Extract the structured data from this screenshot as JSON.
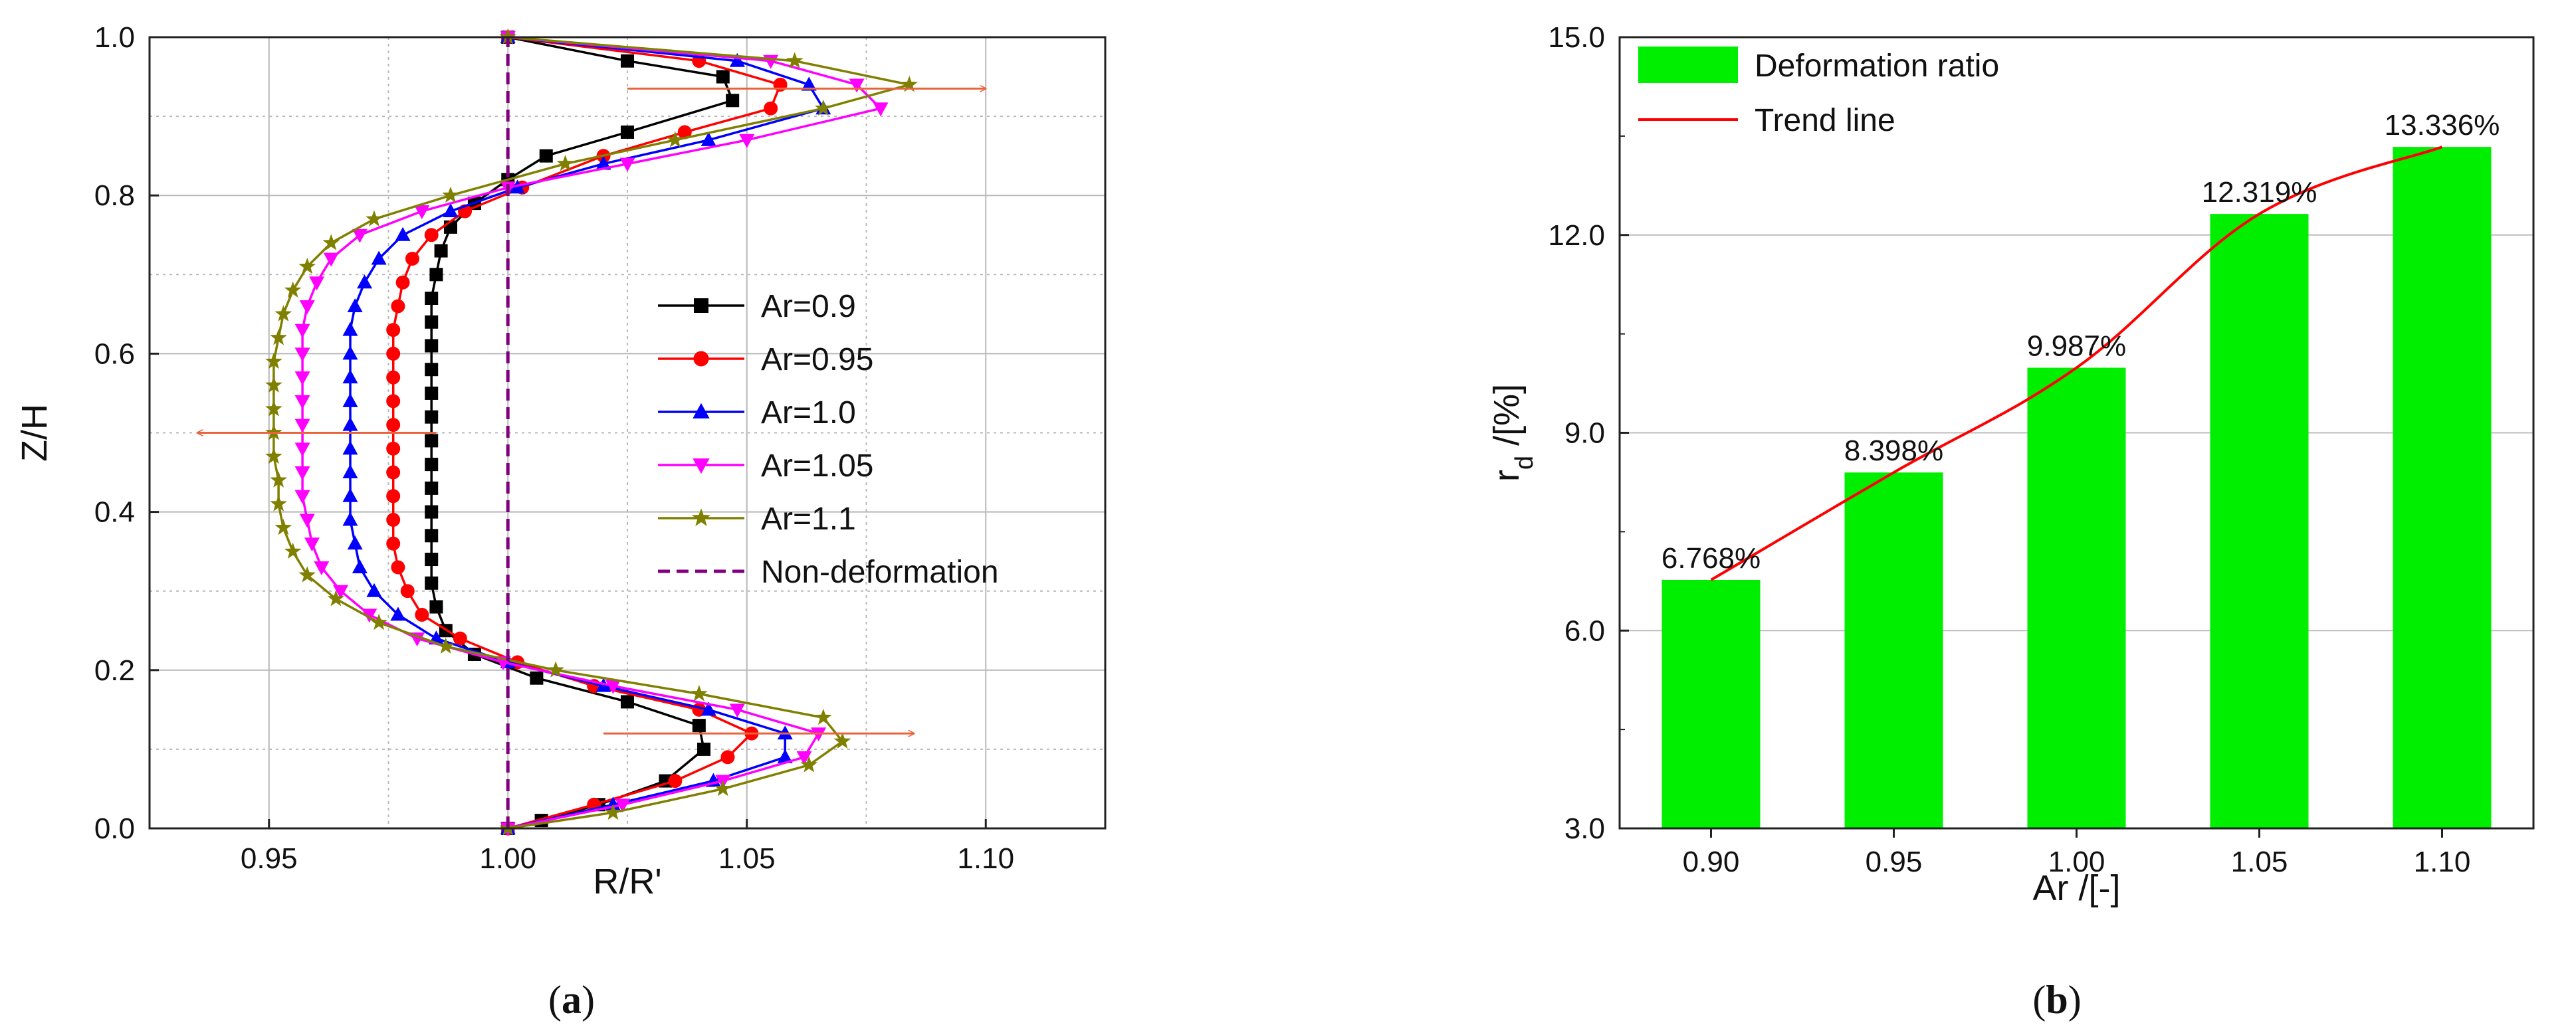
{
  "chart_data": [
    {
      "panel": "a",
      "type": "line",
      "caption": {
        "open": "(",
        "letter": "a",
        "close": ")"
      },
      "xlabel": "R/R'",
      "ylabel": "Z/H",
      "xlim": [
        0.925,
        1.125
      ],
      "ylim": [
        0.0,
        1.0
      ],
      "xticks": [
        0.95,
        1.0,
        1.05,
        1.1
      ],
      "xtick_labels": [
        "0.95",
        "1.00",
        "1.05",
        "1.10"
      ],
      "yticks": [
        0.0,
        0.2,
        0.4,
        0.6,
        0.8,
        1.0
      ],
      "ytick_labels": [
        "0.0",
        "0.2",
        "0.4",
        "0.6",
        "0.8",
        "1.0"
      ],
      "grid": true,
      "legend_position": "right-center",
      "series": [
        {
          "name": "Ar=0.9",
          "color": "#000000",
          "marker": "square",
          "z": [
            0.0,
            0.01,
            0.03,
            0.06,
            0.1,
            0.13,
            0.16,
            0.19,
            0.22,
            0.25,
            0.28,
            0.31,
            0.34,
            0.37,
            0.4,
            0.43,
            0.46,
            0.49,
            0.52,
            0.55,
            0.58,
            0.61,
            0.64,
            0.67,
            0.7,
            0.73,
            0.76,
            0.79,
            0.82,
            0.85,
            0.88,
            0.92,
            0.95,
            0.97,
            1.0
          ],
          "r": [
            1.0,
            1.007,
            1.019,
            1.033,
            1.041,
            1.04,
            1.025,
            1.006,
            0.993,
            0.987,
            0.985,
            0.984,
            0.984,
            0.984,
            0.984,
            0.984,
            0.984,
            0.984,
            0.984,
            0.984,
            0.984,
            0.984,
            0.984,
            0.984,
            0.985,
            0.986,
            0.988,
            0.993,
            1.0,
            1.008,
            1.025,
            1.047,
            1.045,
            1.025,
            1.0
          ]
        },
        {
          "name": "Ar=0.95",
          "color": "#ff0000",
          "marker": "circle",
          "z": [
            0.0,
            0.03,
            0.06,
            0.09,
            0.12,
            0.15,
            0.18,
            0.21,
            0.24,
            0.27,
            0.3,
            0.33,
            0.36,
            0.39,
            0.42,
            0.45,
            0.48,
            0.51,
            0.54,
            0.57,
            0.6,
            0.63,
            0.66,
            0.69,
            0.72,
            0.75,
            0.78,
            0.81,
            0.85,
            0.88,
            0.91,
            0.94,
            0.97,
            1.0
          ],
          "r": [
            1.0,
            1.018,
            1.035,
            1.046,
            1.051,
            1.04,
            1.018,
            1.002,
            0.99,
            0.982,
            0.979,
            0.977,
            0.976,
            0.976,
            0.976,
            0.976,
            0.976,
            0.976,
            0.976,
            0.976,
            0.976,
            0.976,
            0.977,
            0.978,
            0.98,
            0.984,
            0.991,
            1.003,
            1.02,
            1.037,
            1.055,
            1.057,
            1.04,
            1.0
          ]
        },
        {
          "name": "Ar=1.0",
          "color": "#0000ff",
          "marker": "triangle-up",
          "z": [
            0.0,
            0.03,
            0.06,
            0.09,
            0.12,
            0.15,
            0.18,
            0.21,
            0.24,
            0.27,
            0.3,
            0.33,
            0.36,
            0.39,
            0.42,
            0.45,
            0.48,
            0.51,
            0.54,
            0.57,
            0.6,
            0.63,
            0.66,
            0.69,
            0.72,
            0.75,
            0.78,
            0.81,
            0.84,
            0.87,
            0.91,
            0.94,
            0.97,
            1.0
          ],
          "r": [
            1.0,
            1.022,
            1.043,
            1.058,
            1.058,
            1.042,
            1.02,
            1.0,
            0.985,
            0.977,
            0.972,
            0.969,
            0.968,
            0.967,
            0.967,
            0.967,
            0.967,
            0.967,
            0.967,
            0.967,
            0.967,
            0.967,
            0.968,
            0.97,
            0.973,
            0.978,
            0.988,
            1.002,
            1.02,
            1.042,
            1.066,
            1.063,
            1.048,
            1.0
          ]
        },
        {
          "name": "Ar=1.05",
          "color": "#ff00ff",
          "marker": "triangle-down",
          "z": [
            0.0,
            0.03,
            0.06,
            0.09,
            0.12,
            0.15,
            0.18,
            0.21,
            0.24,
            0.27,
            0.3,
            0.33,
            0.36,
            0.39,
            0.42,
            0.45,
            0.48,
            0.51,
            0.54,
            0.57,
            0.6,
            0.63,
            0.66,
            0.69,
            0.72,
            0.75,
            0.78,
            0.81,
            0.84,
            0.87,
            0.91,
            0.94,
            0.97,
            1.0
          ],
          "r": [
            1.0,
            1.024,
            1.045,
            1.062,
            1.065,
            1.048,
            1.022,
            0.999,
            0.981,
            0.971,
            0.965,
            0.961,
            0.959,
            0.958,
            0.957,
            0.957,
            0.957,
            0.957,
            0.957,
            0.957,
            0.957,
            0.957,
            0.958,
            0.96,
            0.963,
            0.969,
            0.982,
            1.0,
            1.025,
            1.05,
            1.078,
            1.073,
            1.055,
            1.0
          ]
        },
        {
          "name": "Ar=1.1",
          "color": "#808000",
          "marker": "star",
          "z": [
            0.0,
            0.02,
            0.05,
            0.08,
            0.11,
            0.14,
            0.17,
            0.2,
            0.23,
            0.26,
            0.29,
            0.32,
            0.35,
            0.38,
            0.41,
            0.44,
            0.47,
            0.5,
            0.53,
            0.56,
            0.59,
            0.62,
            0.65,
            0.68,
            0.71,
            0.74,
            0.77,
            0.8,
            0.84,
            0.87,
            0.91,
            0.94,
            0.97,
            1.0
          ],
          "r": [
            1.0,
            1.022,
            1.045,
            1.063,
            1.07,
            1.066,
            1.04,
            1.01,
            0.987,
            0.973,
            0.964,
            0.958,
            0.955,
            0.953,
            0.952,
            0.952,
            0.951,
            0.951,
            0.951,
            0.951,
            0.951,
            0.952,
            0.953,
            0.955,
            0.958,
            0.963,
            0.972,
            0.988,
            1.012,
            1.035,
            1.066,
            1.084,
            1.06,
            1.0
          ]
        },
        {
          "name": "Non-deformation",
          "color": "#800080",
          "marker": "none",
          "dashed": true,
          "z": [
            0.0,
            1.0
          ],
          "r": [
            1.0,
            1.0
          ]
        }
      ],
      "annotations": [
        {
          "type": "arrow",
          "label": "",
          "from": [
            1.025,
            0.935
          ],
          "to": [
            1.1,
            0.935
          ]
        },
        {
          "type": "arrow",
          "label": "",
          "from": [
            0.985,
            0.5
          ],
          "to": [
            0.935,
            0.5
          ]
        },
        {
          "type": "arrow",
          "label": "",
          "from": [
            1.02,
            0.12
          ],
          "to": [
            1.085,
            0.12
          ]
        }
      ]
    },
    {
      "panel": "b",
      "type": "bar",
      "caption": {
        "open": "(",
        "letter": "b",
        "close": ")"
      },
      "xlabel": "Ar /[-]",
      "ylabel": "r",
      "ylabel_sub": "d",
      "ylabel_tail": " /[%]",
      "categories": [
        "0.90",
        "0.95",
        "1.00",
        "1.05",
        "1.10"
      ],
      "values": [
        6.768,
        8.398,
        9.987,
        12.319,
        13.336
      ],
      "value_labels": [
        "6.768%",
        "8.398%",
        "9.987%",
        "12.319%",
        "13.336%"
      ],
      "ylim": [
        3.0,
        15.0
      ],
      "yticks": [
        3.0,
        6.0,
        9.0,
        12.0,
        15.0
      ],
      "ytick_labels": [
        "3.0",
        "6.0",
        "9.0",
        "12.0",
        "15.0"
      ],
      "grid": true,
      "legend_position": "top-left",
      "series": [
        {
          "name": "Deformation ratio",
          "type": "bar",
          "color": "#00ee00"
        },
        {
          "name": "Trend line",
          "type": "line",
          "color": "#ff0000"
        }
      ]
    }
  ]
}
